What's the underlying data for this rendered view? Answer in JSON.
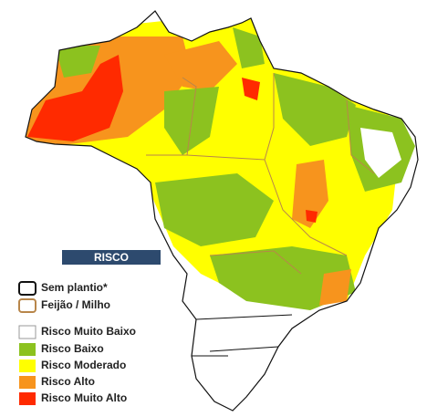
{
  "legend_title": "RISCO",
  "legend": [
    {
      "label": "Sem plantio*",
      "style": "outline",
      "color": "#111111"
    },
    {
      "label": "Feijão / Milho",
      "style": "outline",
      "color": "#b8864a"
    },
    {
      "label": "Risco Muito Baixo",
      "style": "fill",
      "color": "#ffffff"
    },
    {
      "label": "Risco Baixo",
      "style": "fill",
      "color": "#8cc21f"
    },
    {
      "label": "Risco Moderado",
      "style": "fill",
      "color": "#ffff00"
    },
    {
      "label": "Risco Alto",
      "style": "fill",
      "color": "#f7941d"
    },
    {
      "label": "Risco Muito Alto",
      "style": "fill",
      "color": "#ff2a00"
    }
  ]
}
